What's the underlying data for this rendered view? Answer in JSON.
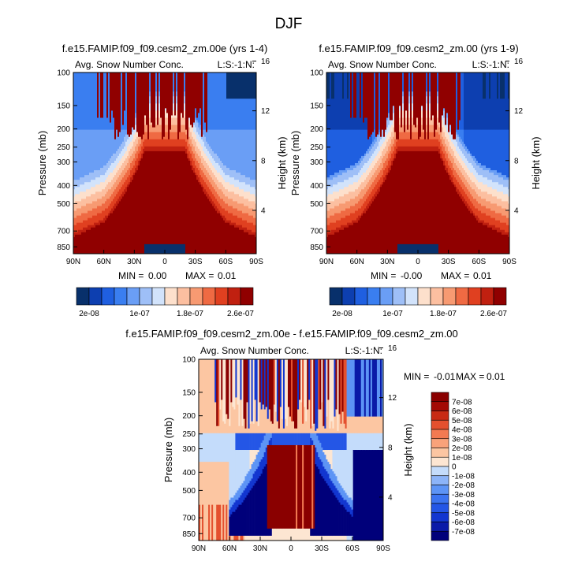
{
  "figure_title": "DJF",
  "chart_data": [
    {
      "type": "heatmap",
      "title": "f.e15.FAMIP.f09_f09.cesm2_zm.00e (yrs 1-4)",
      "left_label": "Avg. Snow Number Conc.",
      "right_label": "L:S:-1:N:",
      "ylabel": "Pressure (mb)",
      "y2label": "Height (km)",
      "x_ticks": [
        "90N",
        "60N",
        "30N",
        "0",
        "30S",
        "60S",
        "90S"
      ],
      "y_ticks": [
        "100",
        "150",
        "200",
        "250",
        "300",
        "400",
        "500",
        "700",
        "850"
      ],
      "y2_ticks": [
        "16",
        "12",
        "8",
        "4"
      ],
      "stats": {
        "min_label": "MIN =",
        "min": "0.00",
        "max_label": "MAX =",
        "max": "0.01"
      },
      "colorbar": {
        "orientation": "horizontal",
        "labels": [
          "2e-08",
          "1e-07",
          "1.8e-07",
          "2.6e-07"
        ],
        "range": [
          0,
          3e-07
        ]
      }
    },
    {
      "type": "heatmap",
      "title": "f.e15.FAMIP.f09_f09.cesm2_zm.00 (yrs 1-9)",
      "left_label": "Avg. Snow Number Conc.",
      "right_label": "L:S:-1:N:",
      "ylabel": "Pressure (mb)",
      "y2label": "Height (km)",
      "x_ticks": [
        "90N",
        "60N",
        "30N",
        "0",
        "30S",
        "60S",
        "90S"
      ],
      "y_ticks": [
        "100",
        "150",
        "200",
        "250",
        "300",
        "400",
        "500",
        "700",
        "850"
      ],
      "y2_ticks": [
        "16",
        "12",
        "8",
        "4"
      ],
      "stats": {
        "min_label": "MIN =",
        "min": "-0.00",
        "max_label": "MAX =",
        "max": "0.01"
      },
      "colorbar": {
        "orientation": "horizontal",
        "labels": [
          "2e-08",
          "1e-07",
          "1.8e-07",
          "2.6e-07"
        ],
        "range": [
          0,
          3e-07
        ]
      }
    },
    {
      "type": "heatmap",
      "title": "f.e15.FAMIP.f09_f09.cesm2_zm.00e - f.e15.FAMIP.f09_f09.cesm2_zm.00",
      "left_label": "Avg. Snow Number Conc.",
      "right_label": "L:S:-1:N:",
      "ylabel": "Pressure (mb)",
      "y2label": "Height (km)",
      "x_ticks": [
        "90N",
        "60N",
        "30N",
        "0",
        "30S",
        "60S",
        "90S"
      ],
      "y_ticks": [
        "100",
        "150",
        "200",
        "250",
        "300",
        "400",
        "500",
        "700",
        "850"
      ],
      "y2_ticks": [
        "16",
        "12",
        "8",
        "4"
      ],
      "stats": {
        "min_label": "MIN =",
        "min": "-0.01",
        "max_label": "MAX =",
        "max": "0.01"
      },
      "colorbar": {
        "orientation": "vertical",
        "labels": [
          "7e-08",
          "6e-08",
          "5e-08",
          "4e-08",
          "3e-08",
          "2e-08",
          "1e-08",
          "0",
          "-1e-08",
          "-2e-08",
          "-3e-08",
          "-4e-08",
          "-5e-08",
          "-6e-08",
          "-7e-08"
        ],
        "range": [
          -8e-08,
          8e-08
        ]
      }
    }
  ],
  "colors": {
    "seq_palette": [
      "#08306b",
      "#0d3fb0",
      "#1f5fe0",
      "#3a7ef0",
      "#6a9ef5",
      "#9ebff7",
      "#d2e3fb",
      "#fde0cc",
      "#fcbfa0",
      "#f79a72",
      "#ef6a43",
      "#e04020",
      "#c02010",
      "#900000"
    ],
    "div_palette": [
      "#00007a",
      "#0a1aa8",
      "#1236d0",
      "#2456e6",
      "#3c74f0",
      "#5d94f5",
      "#8cb4f8",
      "#c4dcfb",
      "#fde6d2",
      "#fcc6a2",
      "#f9a27a",
      "#f37a52",
      "#e4502e",
      "#c82a14",
      "#a30a05",
      "#8a0000"
    ]
  }
}
